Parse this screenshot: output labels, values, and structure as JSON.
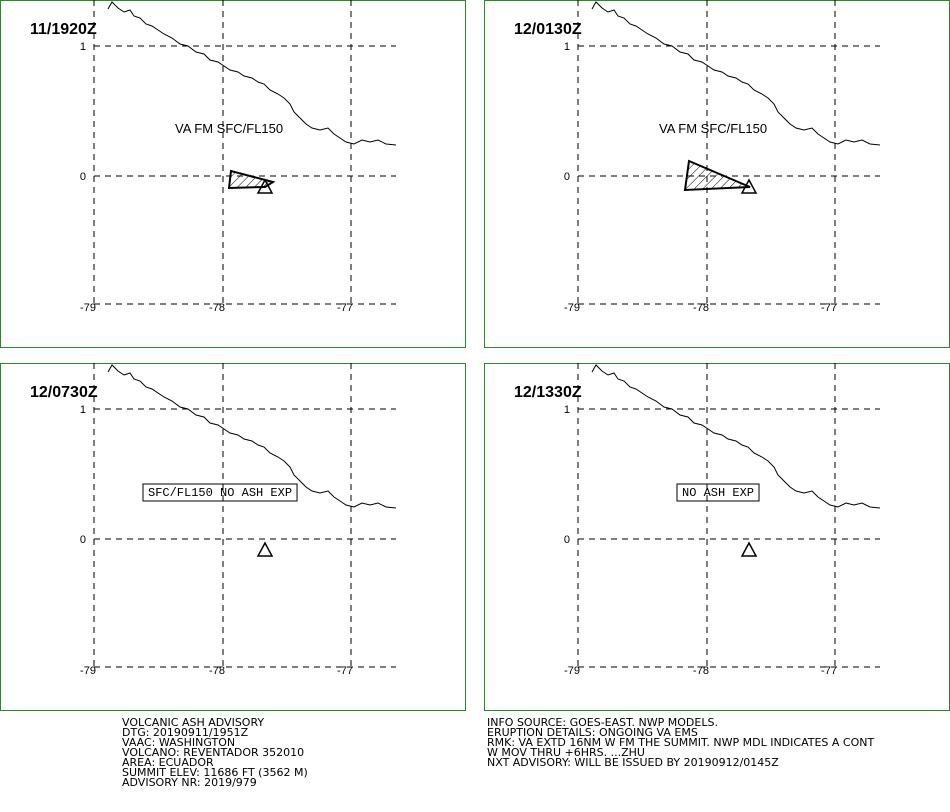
{
  "panels": [
    {
      "time": "11/1920Z",
      "annotation": "VA FM SFC/FL150"
    },
    {
      "time": "12/0130Z",
      "annotation": "VA FM SFC/FL150"
    },
    {
      "time": "12/0730Z",
      "boxed_note": "SFC/FL150 NO ASH EXP"
    },
    {
      "time": "12/1330Z",
      "boxed_note": "NO ASH EXP"
    }
  ],
  "lat_labels": [
    "1",
    "0"
  ],
  "lon_labels": [
    "-79",
    "-78",
    "-77"
  ],
  "footer_left": [
    "VOLCANIC ASH ADVISORY",
    "DTG: 20190911/1951Z",
    "VAAC: WASHINGTON",
    "VOLCANO: REVENTADOR 352010",
    "AREA: ECUADOR",
    "SUMMIT ELEV: 11686 FT (3562 M)",
    "ADVISORY NR: 2019/979"
  ],
  "footer_right": [
    "INFO SOURCE: GOES-EAST. NWP MODELS.",
    "ERUPTION DETAILS: ONGOING VA EMS",
    "RMK: VA EXTD 16NM W FM THE SUMMIT. NWP MDL INDICATES A CONT",
    "W MOV THRU +6HRS. ...ZHU",
    "NXT ADVISORY: WILL BE ISSUED BY 20190912/0145Z"
  ]
}
